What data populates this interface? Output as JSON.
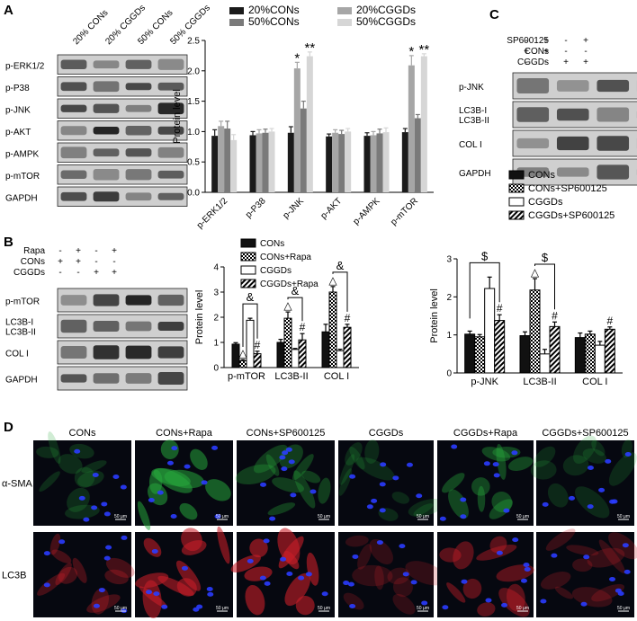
{
  "panelA": {
    "letter": "A",
    "lanes": [
      "20% CONs",
      "20% CGGDs",
      "50% CONs",
      "50% CGGDs"
    ],
    "blots": [
      "p-ERK1/2",
      "p-P38",
      "p-JNK",
      "p-AKT",
      "p-AMPK",
      "p-mTOR",
      "GAPDH"
    ],
    "chart_data": {
      "type": "bar",
      "categories": [
        "p-ERK1/2",
        "p-P38",
        "p-JNK",
        "p-AKT",
        "p-AMPK",
        "p-mTOR"
      ],
      "series": [
        {
          "name": "20%CONs",
          "color": "#1a1a1a",
          "values": [
            0.93,
            0.94,
            0.98,
            0.92,
            0.93,
            0.99
          ],
          "err": [
            0.1,
            0.06,
            0.1,
            0.04,
            0.05,
            0.06
          ]
        },
        {
          "name": "20%CGGDs",
          "color": "#a6a6a6",
          "values": [
            1.09,
            0.97,
            2.04,
            0.98,
            0.94,
            2.09
          ],
          "err": [
            0.08,
            0.06,
            0.1,
            0.05,
            0.06,
            0.16
          ]
        },
        {
          "name": "50%CONs",
          "color": "#7a7a7a",
          "values": [
            1.05,
            0.98,
            1.38,
            0.96,
            0.97,
            1.22
          ],
          "err": [
            0.12,
            0.06,
            0.12,
            0.06,
            0.07,
            0.06
          ]
        },
        {
          "name": "50%CGGDs",
          "color": "#d6d6d6",
          "values": [
            0.86,
            1.0,
            2.24,
            1.0,
            0.99,
            2.24
          ],
          "err": [
            0.09,
            0.05,
            0.07,
            0.05,
            0.07,
            0.04
          ]
        }
      ],
      "annotations": [
        {
          "text": "*",
          "category": 2,
          "series": 1
        },
        {
          "text": "**",
          "category": 2,
          "series": 3
        },
        {
          "text": "*",
          "category": 5,
          "series": 1
        },
        {
          "text": "**",
          "category": 5,
          "series": 3
        }
      ],
      "ylabel": "Protein level",
      "ylim": [
        0,
        2.5
      ],
      "yticks": [
        "0.0",
        "0.5",
        "1.0",
        "1.5",
        "2.0",
        "2.5"
      ]
    }
  },
  "panelB": {
    "letter": "B",
    "conditions": [
      {
        "name": "Rapa",
        "signs": [
          "-",
          "+",
          "-",
          "+"
        ]
      },
      {
        "name": "CONs",
        "signs": [
          "+",
          "+",
          "-",
          "-"
        ]
      },
      {
        "name": "CGGDs",
        "signs": [
          "-",
          "-",
          "+",
          "+"
        ]
      }
    ],
    "blots": [
      "p-mTOR",
      "LC3B-I\nLC3B-II",
      "COL I",
      "GAPDH"
    ],
    "chart_data": {
      "type": "bar",
      "categories": [
        "p-mTOR",
        "LC3B-II",
        "COL I"
      ],
      "series": [
        {
          "name": "CONs",
          "fill": "solid",
          "values": [
            0.93,
            1.0,
            1.42
          ],
          "err": [
            0.06,
            0.12,
            0.3
          ]
        },
        {
          "name": "CONs+Rapa",
          "fill": "check",
          "values": [
            0.27,
            1.96,
            3.0
          ],
          "err": [
            0.05,
            0.25,
            0.22
          ]
        },
        {
          "name": "CGGDs",
          "fill": "white",
          "values": [
            1.88,
            0.72,
            0.67
          ],
          "err": [
            0.08,
            0.04,
            0.06
          ]
        },
        {
          "name": "CGGDs+Rapa",
          "fill": "stripe",
          "values": [
            0.55,
            1.1,
            1.6
          ],
          "err": [
            0.1,
            0.25,
            0.12
          ]
        }
      ],
      "annotations": [
        {
          "text": "△",
          "category": 0,
          "series": 1
        },
        {
          "text": "#",
          "category": 0,
          "series": 3
        },
        {
          "text": "△",
          "category": 1,
          "series": 1
        },
        {
          "text": "#",
          "category": 1,
          "series": 3
        },
        {
          "text": "△",
          "category": 2,
          "series": 1
        },
        {
          "text": "#",
          "category": 2,
          "series": 3
        }
      ],
      "brackets": [
        {
          "text": "&",
          "category": 0,
          "from": 1,
          "to": 3
        },
        {
          "text": "&",
          "category": 1,
          "from": 1,
          "to": 3
        },
        {
          "text": "&",
          "category": 2,
          "from": 1,
          "to": 3
        }
      ],
      "ylabel": "Protein level",
      "ylim": [
        0,
        4
      ],
      "yticks": [
        "0",
        "1",
        "2",
        "3",
        "4"
      ]
    }
  },
  "panelC": {
    "letter": "C",
    "conditions": [
      {
        "name": "SP600125",
        "signs": [
          "-",
          "+",
          "-",
          "+"
        ]
      },
      {
        "name": "CONs",
        "signs": [
          "+",
          "+",
          "-",
          "-"
        ]
      },
      {
        "name": "CGGDs",
        "signs": [
          "-",
          "-",
          "+",
          "+"
        ]
      }
    ],
    "blots": [
      "p-JNK",
      "LC3B-I\nLC3B-II",
      "COL I",
      "GAPDH"
    ],
    "chart_data": {
      "type": "bar",
      "categories": [
        "p-JNK",
        "LC3B-II",
        "COL I"
      ],
      "series": [
        {
          "name": "CONs",
          "fill": "solid",
          "values": [
            1.02,
            0.98,
            0.93
          ],
          "err": [
            0.08,
            0.1,
            0.12
          ]
        },
        {
          "name": "CONs+SP600125",
          "fill": "check",
          "values": [
            0.95,
            2.18,
            1.02
          ],
          "err": [
            0.06,
            0.3,
            0.08
          ]
        },
        {
          "name": "CGGDs",
          "fill": "white",
          "values": [
            2.22,
            0.5,
            0.73
          ],
          "err": [
            0.3,
            0.12,
            0.1
          ]
        },
        {
          "name": "CGGDs+SP600125",
          "fill": "stripe",
          "values": [
            1.38,
            1.22,
            1.15
          ],
          "err": [
            0.15,
            0.12,
            0.06
          ]
        }
      ],
      "annotations": [
        {
          "text": "#",
          "category": 0,
          "series": 3
        },
        {
          "text": "△",
          "category": 1,
          "series": 1
        },
        {
          "text": "#",
          "category": 1,
          "series": 3
        },
        {
          "text": "#",
          "category": 2,
          "series": 3
        }
      ],
      "brackets": [
        {
          "text": "$",
          "category": 0,
          "from": 0,
          "to": 3
        },
        {
          "text": "$",
          "category": 1,
          "from": 1,
          "to": 3
        }
      ],
      "ylabel": "Protein level",
      "ylim": [
        0,
        3
      ],
      "yticks": [
        "0",
        "1",
        "2",
        "3"
      ]
    }
  },
  "panelD": {
    "letter": "D",
    "columns": [
      "CONs",
      "CONs+Rapa",
      "CONs+SP600125",
      "CGGDs",
      "CGGDs+Rapa",
      "CGGDs+SP600125"
    ],
    "rows": [
      {
        "label": "α-SMA",
        "stain": "green",
        "intensity": [
          0.15,
          0.75,
          0.35,
          0.1,
          0.45,
          0.1
        ]
      },
      {
        "label": "LC3B",
        "stain": "red",
        "intensity": [
          0.35,
          0.85,
          0.9,
          0.15,
          0.55,
          0.2
        ]
      }
    ],
    "scalebar": "50 μm"
  }
}
